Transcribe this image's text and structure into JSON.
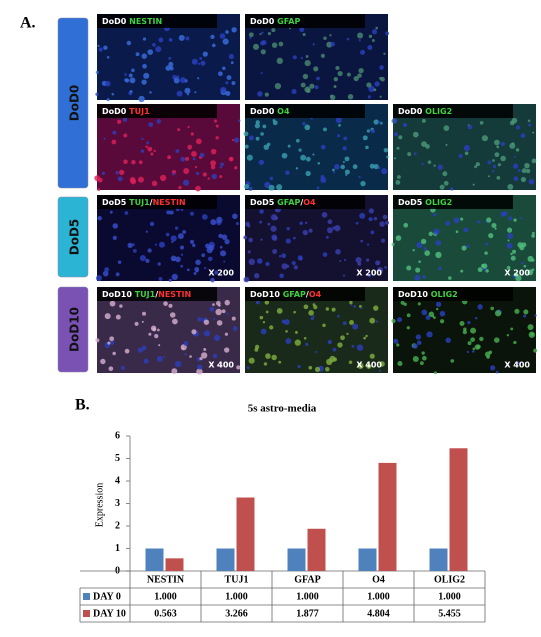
{
  "panel_a": {
    "label": "A.",
    "separator": "/",
    "groups": [
      {
        "stage": "DoD0",
        "color": "#2f6fd6",
        "rows": [
          [
            {
              "prefix": "DoD0",
              "markers": [
                {
                  "text": "NESTIN",
                  "color": "#3fd13f"
                }
              ],
              "bg": "#0a1a4a",
              "dot": "#3a6fe0"
            },
            {
              "prefix": "DoD0",
              "markers": [
                {
                  "text": "GFAP",
                  "color": "#3fd13f"
                }
              ],
              "bg": "#0a1640",
              "dot": "#4a8a70"
            }
          ],
          [
            {
              "prefix": "DoD0",
              "markers": [
                {
                  "text": "TUJ1",
                  "color": "#ff3030"
                }
              ],
              "bg": "#5a0a3a",
              "dot": "#e0205a"
            },
            {
              "prefix": "DoD0",
              "markers": [
                {
                  "text": "O4",
                  "color": "#3fd13f"
                }
              ],
              "bg": "#0a2a4a",
              "dot": "#3aa0b0"
            },
            {
              "prefix": "DoD0",
              "markers": [
                {
                  "text": "OLIG2",
                  "color": "#3fd13f"
                }
              ],
              "bg": "#143a3a",
              "dot": "#4a9a7a"
            }
          ]
        ]
      },
      {
        "stage": "DoD5",
        "color": "#2cb4d4",
        "rows": [
          [
            {
              "prefix": "DoD5",
              "markers": [
                {
                  "text": "TUJ1",
                  "color": "#3fd13f"
                },
                {
                  "text": "NESTIN",
                  "color": "#ff3030"
                }
              ],
              "bg": "#0a0a30",
              "dot": "#3a50d0",
              "magnification": "X 200"
            },
            {
              "prefix": "DoD5",
              "markers": [
                {
                  "text": "GFAP",
                  "color": "#3fd13f"
                },
                {
                  "text": "O4",
                  "color": "#ff3030"
                }
              ],
              "bg": "#141030",
              "dot": "#3a40b0",
              "magnification": "X 200"
            },
            {
              "prefix": "DoD5",
              "markers": [
                {
                  "text": "OLIG2",
                  "color": "#3fd13f"
                }
              ],
              "bg": "#1a4a3a",
              "dot": "#50c080",
              "magnification": "X 200"
            }
          ]
        ]
      },
      {
        "stage": "DoD10",
        "color": "#7a52b4",
        "rows": [
          [
            {
              "prefix": "DoD10",
              "markers": [
                {
                  "text": "TUJ1",
                  "color": "#3fd13f"
                },
                {
                  "text": "NESTIN",
                  "color": "#ff3030"
                }
              ],
              "bg": "#3a2a4a",
              "dot": "#d8b0d0",
              "magnification": "X 400"
            },
            {
              "prefix": "DoD10",
              "markers": [
                {
                  "text": "GFAP",
                  "color": "#3fd13f"
                },
                {
                  "text": "O4",
                  "color": "#ff3030"
                }
              ],
              "bg": "#1a2a1a",
              "dot": "#80b040",
              "magnification": "X 400"
            },
            {
              "prefix": "DoD10",
              "markers": [
                {
                  "text": "OLIG2",
                  "color": "#3fd13f"
                }
              ],
              "bg": "#0a140a",
              "dot": "#4ab050",
              "magnification": "X 400"
            }
          ]
        ]
      }
    ]
  },
  "chart_data": {
    "type": "bar",
    "panel_label": "B.",
    "title": "5s astro-media",
    "y_label": "Expression",
    "categories": [
      "NESTIN",
      "TUJ1",
      "GFAP",
      "O4",
      "OLIG2"
    ],
    "series": [
      {
        "name": "DAY 0",
        "color": "#4f81bd",
        "values": [
          1,
          1,
          1,
          1,
          1
        ],
        "value_labels": [
          "1.000",
          "1.000",
          "1.000",
          "1.000",
          "1.000"
        ]
      },
      {
        "name": "DAY 10",
        "color": "#c0504d",
        "values": [
          0.563,
          3.266,
          1.877,
          4.804,
          5.455
        ],
        "value_labels": [
          "0.563",
          "3.266",
          "1.877",
          "4.804",
          "5.455"
        ]
      }
    ],
    "ylim": [
      0,
      6
    ],
    "yticks": [
      0,
      1,
      2,
      3,
      4,
      5,
      6
    ]
  }
}
